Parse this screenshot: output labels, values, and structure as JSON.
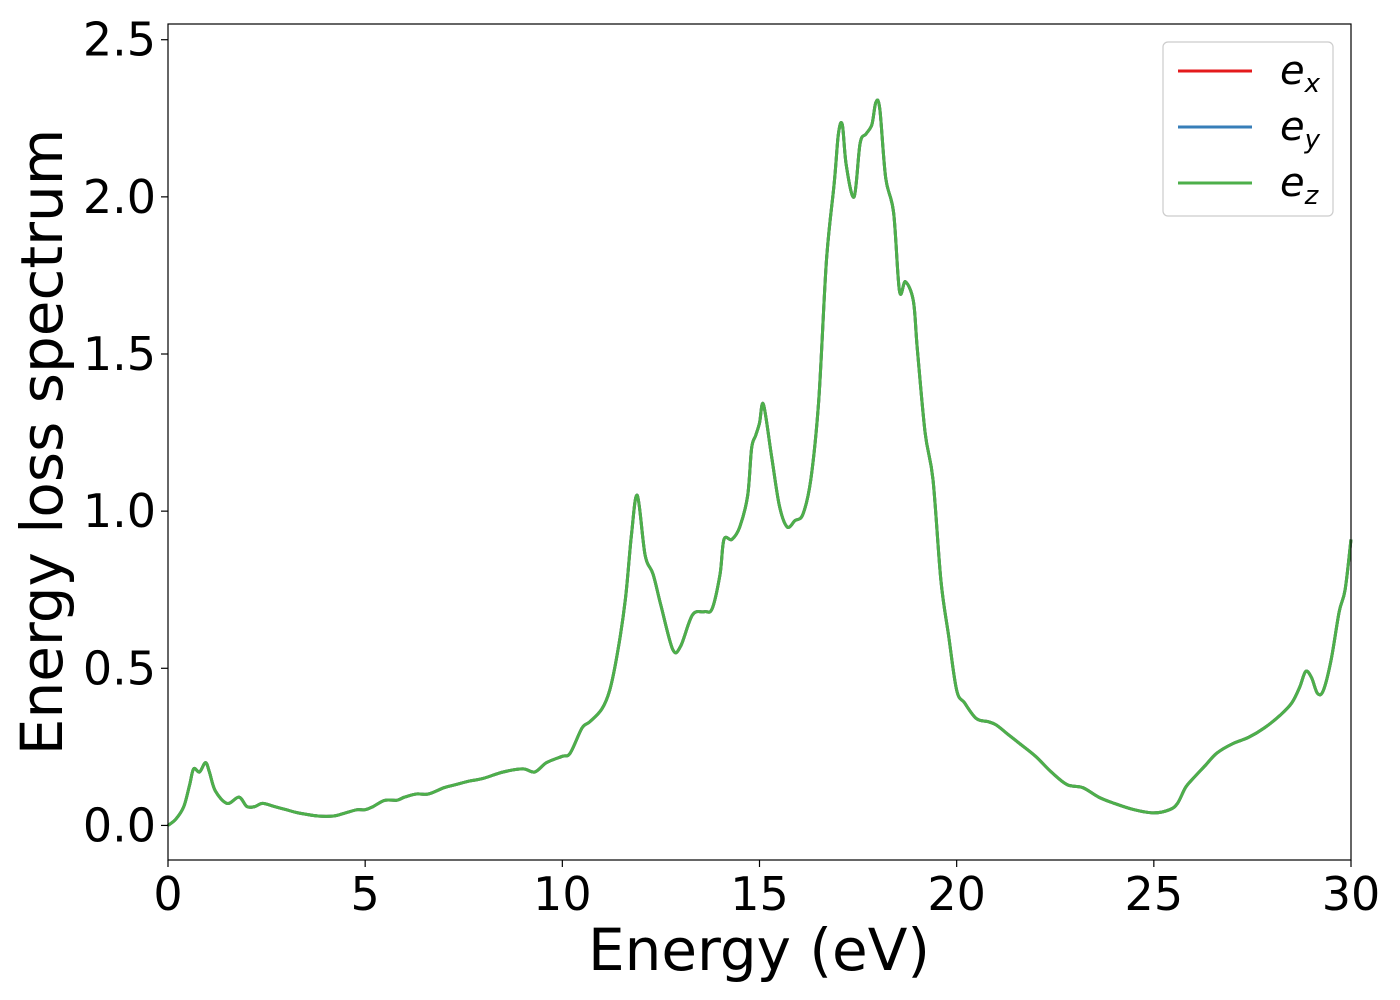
{
  "chart_data": {
    "type": "line",
    "title": "",
    "xlabel": "Energy (eV)",
    "ylabel": "Energy loss spectrum",
    "xlim": [
      0,
      30
    ],
    "ylim": [
      -0.11,
      2.55
    ],
    "x_ticks": [
      "0",
      "5",
      "10",
      "15",
      "20",
      "25",
      "30"
    ],
    "y_ticks": [
      "0.0",
      "0.5",
      "1.0",
      "1.5",
      "2.0",
      "2.5"
    ],
    "grid": false,
    "legend_position": "top-right",
    "series": [
      {
        "name": "e_x",
        "legend_base": "e",
        "legend_sub": "x",
        "color": "#e41a1c"
      },
      {
        "name": "e_y",
        "legend_base": "e",
        "legend_sub": "y",
        "color": "#377eb8"
      },
      {
        "name": "e_z",
        "legend_base": "e",
        "legend_sub": "z",
        "color": "#4daf4a"
      }
    ],
    "curve": {
      "x": [
        0,
        0.2,
        0.4,
        0.55,
        0.65,
        0.8,
        0.95,
        1.05,
        1.2,
        1.5,
        1.8,
        2.0,
        2.2,
        2.4,
        2.7,
        3.0,
        3.3,
        3.8,
        4.2,
        4.5,
        4.8,
        5.0,
        5.2,
        5.5,
        5.8,
        6.0,
        6.3,
        6.6,
        7.0,
        7.3,
        7.6,
        8.0,
        8.5,
        9.0,
        9.3,
        9.6,
        10.0,
        10.2,
        10.5,
        10.7,
        11.0,
        11.2,
        11.4,
        11.6,
        11.75,
        11.9,
        12.1,
        12.3,
        12.5,
        12.8,
        13.0,
        13.3,
        13.6,
        13.8,
        14.0,
        14.1,
        14.3,
        14.5,
        14.7,
        14.8,
        14.9,
        15.0,
        15.1,
        15.3,
        15.5,
        15.7,
        15.9,
        16.1,
        16.3,
        16.5,
        16.7,
        16.9,
        17.0,
        17.1,
        17.2,
        17.4,
        17.55,
        17.7,
        17.85,
        17.95,
        18.05,
        18.2,
        18.4,
        18.55,
        18.7,
        18.9,
        19.0,
        19.2,
        19.4,
        19.6,
        19.8,
        20.0,
        20.2,
        20.5,
        20.8,
        21.0,
        21.3,
        21.6,
        22.0,
        22.4,
        22.8,
        23.2,
        23.6,
        24.0,
        24.5,
        25.0,
        25.4,
        25.6,
        25.8,
        26.0,
        26.3,
        26.6,
        27.0,
        27.4,
        27.8,
        28.2,
        28.5,
        28.7,
        28.85,
        29.0,
        29.15,
        29.3,
        29.5,
        29.7,
        29.85,
        30.0
      ],
      "y": [
        0.0,
        0.02,
        0.06,
        0.13,
        0.18,
        0.17,
        0.2,
        0.17,
        0.11,
        0.07,
        0.09,
        0.06,
        0.06,
        0.07,
        0.06,
        0.05,
        0.04,
        0.03,
        0.03,
        0.04,
        0.05,
        0.05,
        0.06,
        0.08,
        0.08,
        0.09,
        0.1,
        0.1,
        0.12,
        0.13,
        0.14,
        0.15,
        0.17,
        0.18,
        0.17,
        0.2,
        0.22,
        0.23,
        0.31,
        0.33,
        0.37,
        0.43,
        0.55,
        0.72,
        0.92,
        1.05,
        0.86,
        0.8,
        0.7,
        0.56,
        0.57,
        0.67,
        0.68,
        0.69,
        0.8,
        0.91,
        0.91,
        0.95,
        1.05,
        1.2,
        1.24,
        1.28,
        1.34,
        1.18,
        1.02,
        0.95,
        0.97,
        0.99,
        1.1,
        1.35,
        1.8,
        2.05,
        2.2,
        2.23,
        2.1,
        2.0,
        2.17,
        2.2,
        2.23,
        2.3,
        2.28,
        2.06,
        1.95,
        1.7,
        1.73,
        1.67,
        1.52,
        1.25,
        1.1,
        0.78,
        0.6,
        0.43,
        0.39,
        0.34,
        0.33,
        0.32,
        0.29,
        0.26,
        0.22,
        0.17,
        0.13,
        0.12,
        0.09,
        0.07,
        0.05,
        0.04,
        0.05,
        0.07,
        0.12,
        0.15,
        0.19,
        0.23,
        0.26,
        0.28,
        0.31,
        0.35,
        0.39,
        0.44,
        0.49,
        0.47,
        0.42,
        0.43,
        0.53,
        0.68,
        0.75,
        0.91
      ]
    }
  }
}
